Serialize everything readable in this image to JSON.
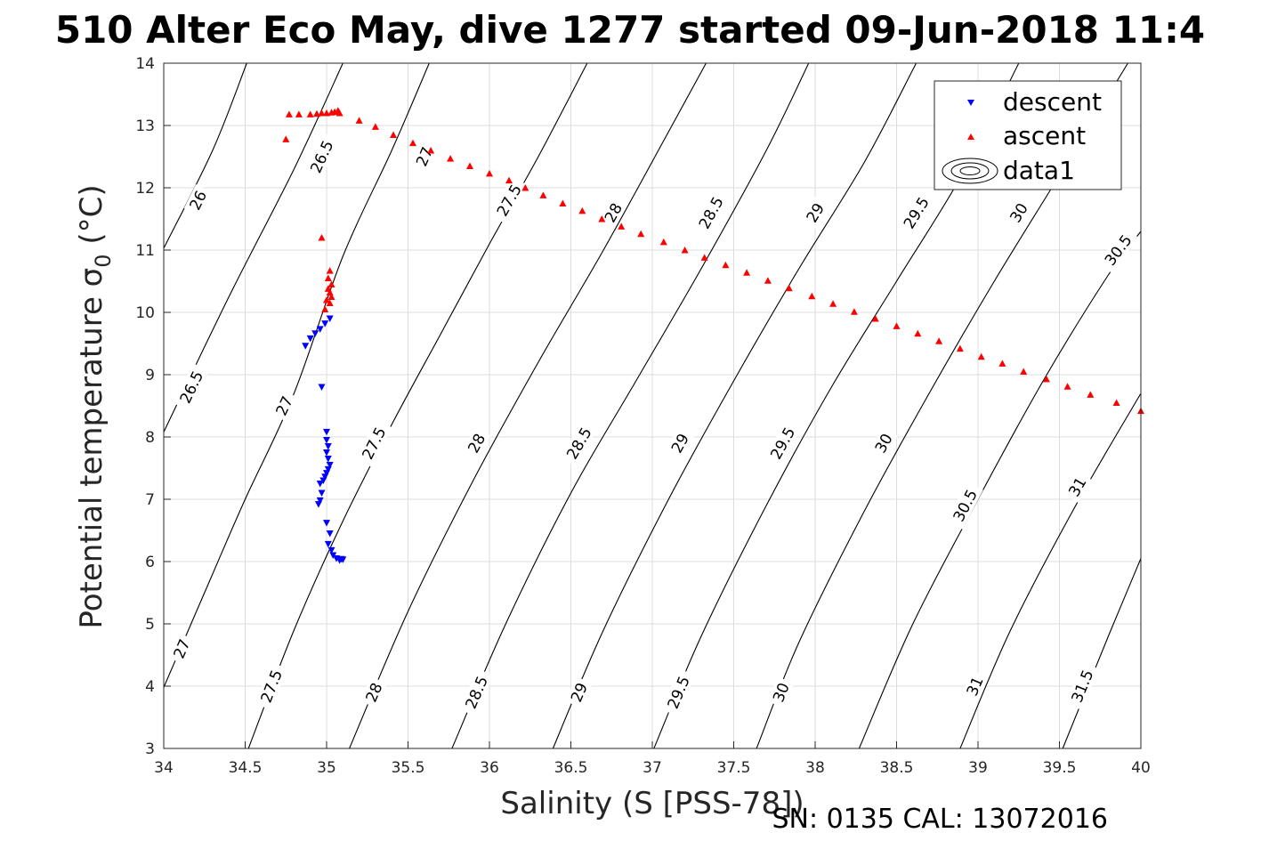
{
  "figure": {
    "title": "510 Alter Eco May, dive 1277 started 09-Jun-2018 11:4",
    "footer": "SN: 0135  CAL: 13072016"
  },
  "chart_data": {
    "type": "scatter",
    "xlabel": "Salinity (S [PSS-78])",
    "ylabel_main": "Potential temperature ",
    "ylabel_sigma": "σ",
    "ylabel_sub": "0",
    "ylabel_tail": " (°C)",
    "xlim": [
      34,
      40
    ],
    "ylim": [
      3,
      14
    ],
    "x_ticks": [
      "34",
      "34.5",
      "35",
      "35.5",
      "36",
      "36.5",
      "37",
      "37.5",
      "38",
      "38.5",
      "39",
      "39.5",
      "40"
    ],
    "y_ticks": [
      "3",
      "4",
      "5",
      "6",
      "7",
      "8",
      "9",
      "10",
      "11",
      "12",
      "13",
      "14"
    ],
    "grid": true,
    "legend_position": "top-right",
    "legend": [
      "descent",
      "ascent",
      "data1"
    ],
    "colors": {
      "descent": "#0000ff",
      "ascent": "#ff0000",
      "contour": "#000000",
      "grid": "#dcdcdc"
    },
    "contours": [
      {
        "level": "26",
        "points": [
          [
            34.0,
            11.03
          ],
          [
            34.3,
            12.6
          ],
          [
            34.51,
            14.0
          ]
        ],
        "labels": [
          [
            34.21,
            11.8
          ]
        ]
      },
      {
        "level": "26.5",
        "points": [
          [
            34.0,
            8.08
          ],
          [
            34.4,
            10.25
          ],
          [
            34.8,
            12.3
          ],
          [
            35.1,
            14.0
          ]
        ],
        "labels": [
          [
            34.17,
            8.8
          ],
          [
            34.97,
            12.5
          ]
        ]
      },
      {
        "level": "27",
        "points": [
          [
            34.0,
            3.98
          ],
          [
            34.3,
            5.8
          ],
          [
            34.5,
            7.0
          ],
          [
            34.8,
            8.7
          ],
          [
            35.1,
            10.9
          ],
          [
            35.4,
            12.6
          ],
          [
            35.63,
            14.0
          ]
        ],
        "labels": [
          [
            34.11,
            4.6
          ],
          [
            34.74,
            8.5
          ],
          [
            35.6,
            12.5
          ]
        ]
      },
      {
        "level": "27.5",
        "points": [
          [
            34.52,
            3.0
          ],
          [
            34.8,
            4.9
          ],
          [
            35.1,
            6.65
          ],
          [
            35.4,
            8.2
          ],
          [
            35.7,
            9.65
          ],
          [
            36.0,
            11.1
          ],
          [
            36.3,
            12.5
          ],
          [
            36.6,
            14.0
          ]
        ],
        "labels": [
          [
            34.66,
            4.0
          ],
          [
            35.29,
            7.9
          ],
          [
            36.12,
            11.8
          ]
        ]
      },
      {
        "level": "28",
        "points": [
          [
            35.14,
            3.0
          ],
          [
            35.5,
            5.2
          ],
          [
            35.9,
            7.3
          ],
          [
            36.3,
            9.2
          ],
          [
            36.7,
            11.0
          ],
          [
            37.1,
            12.9
          ],
          [
            37.33,
            14.0
          ]
        ],
        "labels": [
          [
            35.29,
            3.9
          ],
          [
            35.92,
            7.9
          ],
          [
            36.76,
            11.6
          ]
        ]
      },
      {
        "level": "28.5",
        "points": [
          [
            35.77,
            3.0
          ],
          [
            36.1,
            5.0
          ],
          [
            36.5,
            7.1
          ],
          [
            36.9,
            8.9
          ],
          [
            37.3,
            10.7
          ],
          [
            37.7,
            12.6
          ],
          [
            37.96,
            14.0
          ]
        ],
        "labels": [
          [
            35.92,
            3.9
          ],
          [
            36.55,
            7.9
          ],
          [
            37.36,
            11.6
          ]
        ]
      },
      {
        "level": "29",
        "points": [
          [
            36.39,
            3.0
          ],
          [
            36.7,
            4.9
          ],
          [
            37.1,
            7.0
          ],
          [
            37.5,
            8.9
          ],
          [
            37.9,
            10.7
          ],
          [
            38.3,
            12.4
          ],
          [
            38.62,
            14.0
          ]
        ],
        "labels": [
          [
            36.55,
            3.9
          ],
          [
            37.17,
            7.9
          ],
          [
            38.0,
            11.6
          ]
        ]
      },
      {
        "level": "29.5",
        "points": [
          [
            37.01,
            3.0
          ],
          [
            37.3,
            4.8
          ],
          [
            37.7,
            6.9
          ],
          [
            38.1,
            8.8
          ],
          [
            38.5,
            10.5
          ],
          [
            38.9,
            12.2
          ],
          [
            39.25,
            14.0
          ]
        ],
        "labels": [
          [
            37.16,
            3.9
          ],
          [
            37.8,
            7.9
          ],
          [
            38.62,
            11.6
          ]
        ]
      },
      {
        "level": "30",
        "points": [
          [
            37.64,
            3.0
          ],
          [
            37.9,
            4.7
          ],
          [
            38.3,
            6.8
          ],
          [
            38.7,
            8.7
          ],
          [
            39.1,
            10.5
          ],
          [
            39.5,
            12.2
          ],
          [
            39.92,
            14.0
          ]
        ],
        "labels": [
          [
            37.79,
            3.9
          ],
          [
            38.42,
            7.9
          ],
          [
            39.25,
            11.6
          ]
        ]
      },
      {
        "level": "30.5",
        "points": [
          [
            38.27,
            3.0
          ],
          [
            38.6,
            5.0
          ],
          [
            39.0,
            7.0
          ],
          [
            39.4,
            8.9
          ],
          [
            39.8,
            10.6
          ],
          [
            40.0,
            11.3
          ]
        ],
        "labels": [
          [
            38.92,
            6.9
          ],
          [
            39.86,
            11.0
          ]
        ]
      },
      {
        "level": "31",
        "points": [
          [
            38.89,
            3.0
          ],
          [
            39.2,
            4.9
          ],
          [
            39.6,
            6.9
          ],
          [
            40.0,
            8.7
          ]
        ],
        "labels": [
          [
            38.98,
            4.0
          ],
          [
            39.61,
            7.2
          ]
        ]
      },
      {
        "level": "31.5",
        "points": [
          [
            39.52,
            3.0
          ],
          [
            39.8,
            4.8
          ],
          [
            40.0,
            6.05
          ]
        ],
        "labels": [
          [
            39.64,
            4.0
          ]
        ]
      }
    ],
    "series": [
      {
        "name": "descent",
        "marker": "triangle-down",
        "x": [
          34.87,
          34.9,
          34.93,
          34.96,
          34.99,
          35.02,
          34.97,
          35.0,
          35.0,
          35.01,
          35.0,
          35.01,
          35.02,
          35.01,
          35.0,
          34.99,
          34.98,
          34.96,
          34.95,
          34.97,
          34.96,
          35.0,
          35.02,
          35.01,
          35.03,
          35.04,
          35.06,
          35.08,
          35.1,
          35.09
        ],
        "y": [
          9.46,
          9.58,
          9.66,
          9.73,
          9.82,
          9.9,
          8.8,
          8.08,
          7.95,
          7.85,
          7.75,
          7.65,
          7.55,
          7.48,
          7.42,
          7.36,
          7.3,
          7.25,
          6.92,
          7.1,
          6.98,
          6.62,
          6.45,
          6.28,
          6.18,
          6.1,
          6.05,
          6.02,
          6.03,
          6.04
        ]
      },
      {
        "name": "ascent",
        "marker": "triangle-up",
        "x": [
          34.75,
          34.77,
          34.83,
          34.9,
          34.94,
          34.97,
          35.0,
          35.03,
          35.05,
          35.07,
          35.08,
          35.2,
          35.3,
          35.41,
          35.53,
          35.64,
          35.76,
          35.88,
          36.0,
          36.12,
          36.22,
          36.33,
          36.45,
          36.57,
          36.69,
          36.81,
          36.93,
          37.07,
          37.2,
          37.32,
          37.45,
          37.58,
          37.71,
          37.84,
          37.98,
          38.11,
          38.24,
          38.37,
          38.5,
          38.63,
          38.76,
          38.89,
          39.02,
          39.15,
          39.28,
          39.42,
          39.55,
          39.69,
          39.85,
          40.0,
          34.97,
          35.02,
          35.01,
          35.03,
          35.02,
          35.0,
          35.02,
          34.99,
          35.03,
          35.01
        ],
        "y": [
          12.78,
          13.18,
          13.18,
          13.18,
          13.19,
          13.2,
          13.2,
          13.21,
          13.22,
          13.24,
          13.2,
          13.08,
          12.98,
          12.85,
          12.72,
          12.6,
          12.47,
          12.35,
          12.23,
          12.12,
          12.0,
          11.88,
          11.75,
          11.63,
          11.5,
          11.38,
          11.26,
          11.13,
          11.0,
          10.88,
          10.76,
          10.64,
          10.51,
          10.39,
          10.26,
          10.14,
          10.01,
          9.9,
          9.78,
          9.66,
          9.54,
          9.42,
          9.29,
          9.18,
          9.05,
          8.93,
          8.81,
          8.68,
          8.55,
          8.42,
          11.2,
          10.67,
          10.55,
          10.45,
          10.32,
          10.2,
          10.15,
          10.05,
          10.25,
          10.38
        ]
      }
    ]
  }
}
